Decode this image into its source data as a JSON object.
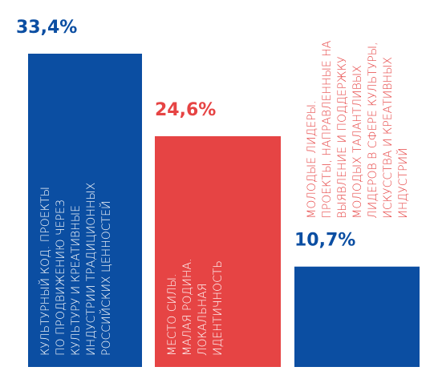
{
  "chart_data": {
    "type": "bar",
    "categories": [
      "КУЛЬТУРНЫЙ КОД. ПРОЕКТЫ\nПО ПРОДВИЖЕНИЮ ЧЕРЕЗ\nКУЛЬТУРУ И КРЕАТИВНЫЕ\nИНДУСТРИИ ТРАДИЦИОННЫХ\nРОССИЙСКИХ ЦЕННОСТЕЙ",
      "МЕСТО СИЛЫ.\nМАЛАЯ РОДИНА.\nЛОКАЛЬНАЯ\nИДЕНТИЧНОСТЬ",
      "МОЛОДЫЕ ЛИДЕРЫ.\nПРОЕКТЫ, НАПРАВЛЕННЫЕ НА\nВЫЯВЛЕНИЕ И ПОДДЕРЖКУ\nМОЛОДЫХ ТАЛАНТЛИВЫХ\nЛИДЕРОВ В СФЕРЕ КУЛЬТУРЫ,\nИСКУССТВА И КРЕАТИВНЫХ\nИНДУСТРИЙ"
    ],
    "values": [
      33.4,
      24.6,
      10.7
    ],
    "value_labels": [
      "33,4%",
      "24,6%",
      "10,7%"
    ],
    "colors": [
      "#0b4ea2",
      "#e64444",
      "#0b4ea2"
    ],
    "label_colors": [
      "#0b4ea2",
      "#e64444",
      "#0b4ea2"
    ],
    "category_colors": [
      "#ffffff",
      "#ffffff",
      "#e64444"
    ]
  }
}
